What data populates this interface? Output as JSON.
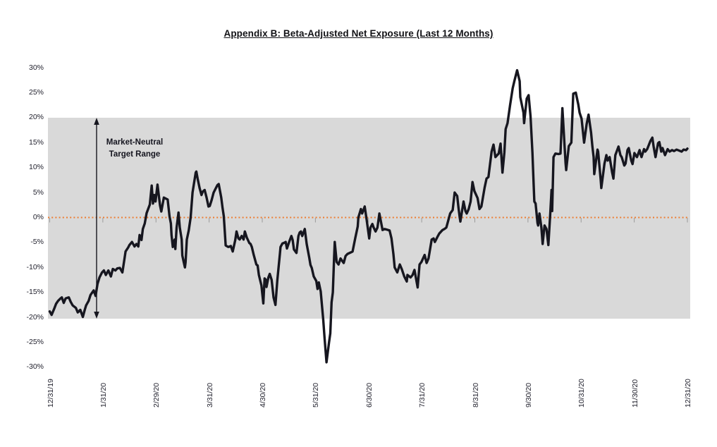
{
  "page": {
    "title": "Appendix B: Beta-Adjusted Net Exposure (Last 12 Months)"
  },
  "annotation": {
    "line1": "Market-Neutral",
    "line2": "Target Range"
  },
  "colors": {
    "band": "#d9d9d9",
    "zero_line": "#ED7D31",
    "series_line": "#16161f",
    "tick": "#9a9a9a",
    "text": "#22222e"
  },
  "chart_data": {
    "type": "line",
    "title": "Appendix B: Beta-Adjusted Net Exposure (Last 12 Months)",
    "xlabel": "",
    "ylabel": "",
    "ylim": [
      -30,
      30
    ],
    "y_tick_step_pct": 5,
    "y_tick_labels": [
      "30%",
      "25%",
      "20%",
      "15%",
      "10%",
      "5%",
      "0%",
      "-5%",
      "-10%",
      "-15%",
      "-20%",
      "-25%",
      "-30%"
    ],
    "x_tick_labels": [
      "12/31/19",
      "1/31/20",
      "2/29/20",
      "3/31/20",
      "4/30/20",
      "5/31/20",
      "6/30/20",
      "7/31/20",
      "8/31/20",
      "9/30/20",
      "10/31/20",
      "11/30/20",
      "12/31/20"
    ],
    "grid": false,
    "legend": "none",
    "zero_reference_line": {
      "value_pct": 0,
      "style": "dotted",
      "color": "#ED7D31"
    },
    "shaded_band": {
      "range_pct": [
        -20,
        20
      ],
      "label": "Market-Neutral Target Range",
      "color": "#d9d9d9"
    },
    "series": {
      "name": "Beta-Adjusted Net Exposure (%)",
      "x_unit": "fraction of axis from 12/31/19 to 12/31/20",
      "t": [
        0.0,
        0.003,
        0.007,
        0.01,
        0.013,
        0.017,
        0.019,
        0.022,
        0.025,
        0.03,
        0.033,
        0.036,
        0.041,
        0.044,
        0.048,
        0.052,
        0.055,
        0.057,
        0.061,
        0.064,
        0.069,
        0.072,
        0.075,
        0.078,
        0.082,
        0.085,
        0.088,
        0.092,
        0.096,
        0.099,
        0.103,
        0.106,
        0.11,
        0.114,
        0.117,
        0.119,
        0.123,
        0.125,
        0.129,
        0.133,
        0.136,
        0.139,
        0.141,
        0.144,
        0.146,
        0.149,
        0.152,
        0.157,
        0.16,
        0.162,
        0.164,
        0.166,
        0.169,
        0.173,
        0.175,
        0.179,
        0.182,
        0.185,
        0.188,
        0.19,
        0.191,
        0.193,
        0.196,
        0.197,
        0.199,
        0.202,
        0.204,
        0.207,
        0.208,
        0.21,
        0.212,
        0.213,
        0.215,
        0.218,
        0.221,
        0.224,
        0.229,
        0.23,
        0.232,
        0.235,
        0.238,
        0.24,
        0.243,
        0.246,
        0.249,
        0.251,
        0.254,
        0.257,
        0.261,
        0.263,
        0.265,
        0.269,
        0.271,
        0.273,
        0.274,
        0.276,
        0.28,
        0.284,
        0.287,
        0.291,
        0.293,
        0.296,
        0.298,
        0.301,
        0.304,
        0.306,
        0.309,
        0.313,
        0.315,
        0.317,
        0.32,
        0.324,
        0.326,
        0.328,
        0.332,
        0.335,
        0.337,
        0.339,
        0.34,
        0.343,
        0.345,
        0.348,
        0.351,
        0.354,
        0.357,
        0.359,
        0.361,
        0.362,
        0.365,
        0.367,
        0.37,
        0.372,
        0.376,
        0.379,
        0.381,
        0.383,
        0.387,
        0.39,
        0.392,
        0.394,
        0.396,
        0.4,
        0.403,
        0.407,
        0.409,
        0.411,
        0.414,
        0.418,
        0.42,
        0.422,
        0.425,
        0.429,
        0.431,
        0.434,
        0.438,
        0.44,
        0.442,
        0.444,
        0.446,
        0.447,
        0.45,
        0.453,
        0.456,
        0.461,
        0.464,
        0.467,
        0.472,
        0.475,
        0.479,
        0.483,
        0.484,
        0.488,
        0.49,
        0.494,
        0.497,
        0.501,
        0.503,
        0.506,
        0.508,
        0.511,
        0.514,
        0.517,
        0.522,
        0.525,
        0.528,
        0.533,
        0.536,
        0.539,
        0.541,
        0.545,
        0.549,
        0.552,
        0.556,
        0.56,
        0.561,
        0.566,
        0.569,
        0.572,
        0.577,
        0.58,
        0.583,
        0.588,
        0.591,
        0.594,
        0.599,
        0.602,
        0.604,
        0.608,
        0.611,
        0.616,
        0.619,
        0.622,
        0.628,
        0.632,
        0.635,
        0.639,
        0.641,
        0.643,
        0.644,
        0.649,
        0.652,
        0.654,
        0.657,
        0.66,
        0.663,
        0.666,
        0.671,
        0.674,
        0.677,
        0.682,
        0.685,
        0.688,
        0.693,
        0.696,
        0.699,
        0.704,
        0.707,
        0.71,
        0.713,
        0.715,
        0.718,
        0.722,
        0.726,
        0.729,
        0.733,
        0.737,
        0.738,
        0.743,
        0.744,
        0.748,
        0.751,
        0.754,
        0.757,
        0.759,
        0.76,
        0.762,
        0.765,
        0.766,
        0.768,
        0.771,
        0.773,
        0.776,
        0.779,
        0.782,
        0.785,
        0.787,
        0.788,
        0.79,
        0.793,
        0.798,
        0.801,
        0.804,
        0.809,
        0.81,
        0.814,
        0.818,
        0.821,
        0.825,
        0.829,
        0.831,
        0.834,
        0.838,
        0.842,
        0.845,
        0.849,
        0.851,
        0.853,
        0.854,
        0.859,
        0.86,
        0.864,
        0.865,
        0.87,
        0.873,
        0.875,
        0.878,
        0.882,
        0.884,
        0.887,
        0.892,
        0.895,
        0.897,
        0.901,
        0.903,
        0.906,
        0.908,
        0.912,
        0.914,
        0.917,
        0.919,
        0.921,
        0.925,
        0.926,
        0.928,
        0.932,
        0.934,
        0.937,
        0.942,
        0.945,
        0.947,
        0.95,
        0.954,
        0.956,
        0.959,
        0.961,
        0.965,
        0.969,
        0.972,
        0.976,
        0.979,
        0.983,
        0.987,
        0.991,
        0.994,
        0.998,
        1.0
      ],
      "v": [
        -18.8,
        -19.5,
        -18.3,
        -17.3,
        -16.7,
        -16.2,
        -16.0,
        -17.1,
        -16.2,
        -16.0,
        -16.9,
        -17.6,
        -18.1,
        -19.0,
        -18.5,
        -19.9,
        -18.5,
        -17.6,
        -16.7,
        -15.5,
        -14.6,
        -15.7,
        -13.3,
        -12.0,
        -11.0,
        -10.6,
        -11.5,
        -10.6,
        -11.8,
        -10.3,
        -10.6,
        -10.2,
        -10.1,
        -11.0,
        -8.5,
        -6.8,
        -6.0,
        -5.5,
        -4.9,
        -5.8,
        -5.3,
        -5.8,
        -3.5,
        -4.5,
        -2.3,
        -1.2,
        0.9,
        2.6,
        6.4,
        2.8,
        4.5,
        3.2,
        6.6,
        2.4,
        1.2,
        4.0,
        3.8,
        3.6,
        0.2,
        -1.2,
        -3.5,
        -5.9,
        -4.4,
        -6.3,
        -2.0,
        1.0,
        -2.0,
        -4.4,
        -7.6,
        -8.8,
        -10.0,
        -9.0,
        -4.4,
        -2.6,
        0.0,
        5.0,
        9.0,
        9.2,
        7.8,
        5.9,
        4.5,
        5.2,
        5.5,
        4.0,
        2.2,
        2.3,
        3.5,
        5.0,
        6.0,
        6.5,
        6.7,
        4.0,
        2.0,
        0.3,
        -1.6,
        -5.6,
        -5.9,
        -5.7,
        -6.8,
        -4.5,
        -2.8,
        -4.2,
        -4.4,
        -3.7,
        -4.4,
        -2.8,
        -4.0,
        -5.1,
        -5.3,
        -5.9,
        -7.5,
        -9.4,
        -9.6,
        -11.5,
        -13.6,
        -17.2,
        -12.2,
        -12.5,
        -13.9,
        -12.0,
        -11.3,
        -12.5,
        -16.0,
        -17.5,
        -12.5,
        -9.9,
        -7.3,
        -5.9,
        -5.2,
        -5.1,
        -4.9,
        -6.2,
        -4.7,
        -3.7,
        -4.5,
        -6.4,
        -7.1,
        -3.7,
        -3.0,
        -2.8,
        -3.7,
        -2.3,
        -5.3,
        -8.0,
        -9.5,
        -10.1,
        -11.8,
        -12.7,
        -14.3,
        -13.0,
        -14.8,
        -20.5,
        -24.0,
        -29.0,
        -25.0,
        -23.2,
        -17.0,
        -15.0,
        -8.0,
        -4.9,
        -8.9,
        -9.4,
        -8.2,
        -9.1,
        -7.7,
        -7.3,
        -7.0,
        -6.8,
        -4.2,
        -1.8,
        0.0,
        1.7,
        0.8,
        2.2,
        -0.4,
        -4.2,
        -2.0,
        -1.3,
        -2.0,
        -2.8,
        -2.0,
        0.8,
        -2.5,
        -2.3,
        -2.4,
        -2.6,
        -4.2,
        -7.3,
        -10.0,
        -11.0,
        -9.4,
        -10.3,
        -11.8,
        -12.8,
        -11.5,
        -12.0,
        -11.5,
        -10.5,
        -14.0,
        -9.4,
        -8.9,
        -7.5,
        -9.1,
        -8.2,
        -4.4,
        -4.2,
        -4.9,
        -3.9,
        -3.2,
        -2.5,
        -2.3,
        -2.0,
        0.8,
        1.5,
        5.0,
        4.3,
        2.0,
        0.0,
        -0.8,
        3.2,
        1.3,
        0.8,
        1.7,
        3.2,
        7.1,
        5.3,
        3.9,
        1.7,
        2.2,
        6.0,
        7.8,
        8.1,
        13.2,
        14.6,
        12.1,
        12.8,
        14.8,
        9.0,
        13.0,
        17.7,
        18.9,
        22.5,
        25.9,
        27.5,
        29.5,
        27.3,
        24.1,
        21.0,
        18.9,
        23.8,
        24.5,
        20.3,
        13.0,
        6.4,
        3.2,
        2.8,
        -1.1,
        -1.6,
        0.8,
        -2.0,
        -5.3,
        -1.6,
        -2.3,
        -5.5,
        0.8,
        5.5,
        1.3,
        12.1,
        12.8,
        12.7,
        12.8,
        21.9,
        10.9,
        9.5,
        14.3,
        15.0,
        24.8,
        25.0,
        22.6,
        21.0,
        19.8,
        15.0,
        18.7,
        20.6,
        17.0,
        14.3,
        12.1,
        8.7,
        13.6,
        13.2,
        7.6,
        5.9,
        10.8,
        12.5,
        11.4,
        12.1,
        9.0,
        7.8,
        12.5,
        14.2,
        12.5,
        12.1,
        10.4,
        10.8,
        13.5,
        13.9,
        11.4,
        10.7,
        12.9,
        12.5,
        12.1,
        13.5,
        12.9,
        12.1,
        13.7,
        13.2,
        13.7,
        15.3,
        16.0,
        14.2,
        12.1,
        14.9,
        15.1,
        13.2,
        13.9,
        12.5,
        13.7,
        13.2,
        13.5,
        13.3,
        13.6,
        13.4,
        13.2,
        13.6,
        13.5,
        13.8
      ]
    }
  }
}
